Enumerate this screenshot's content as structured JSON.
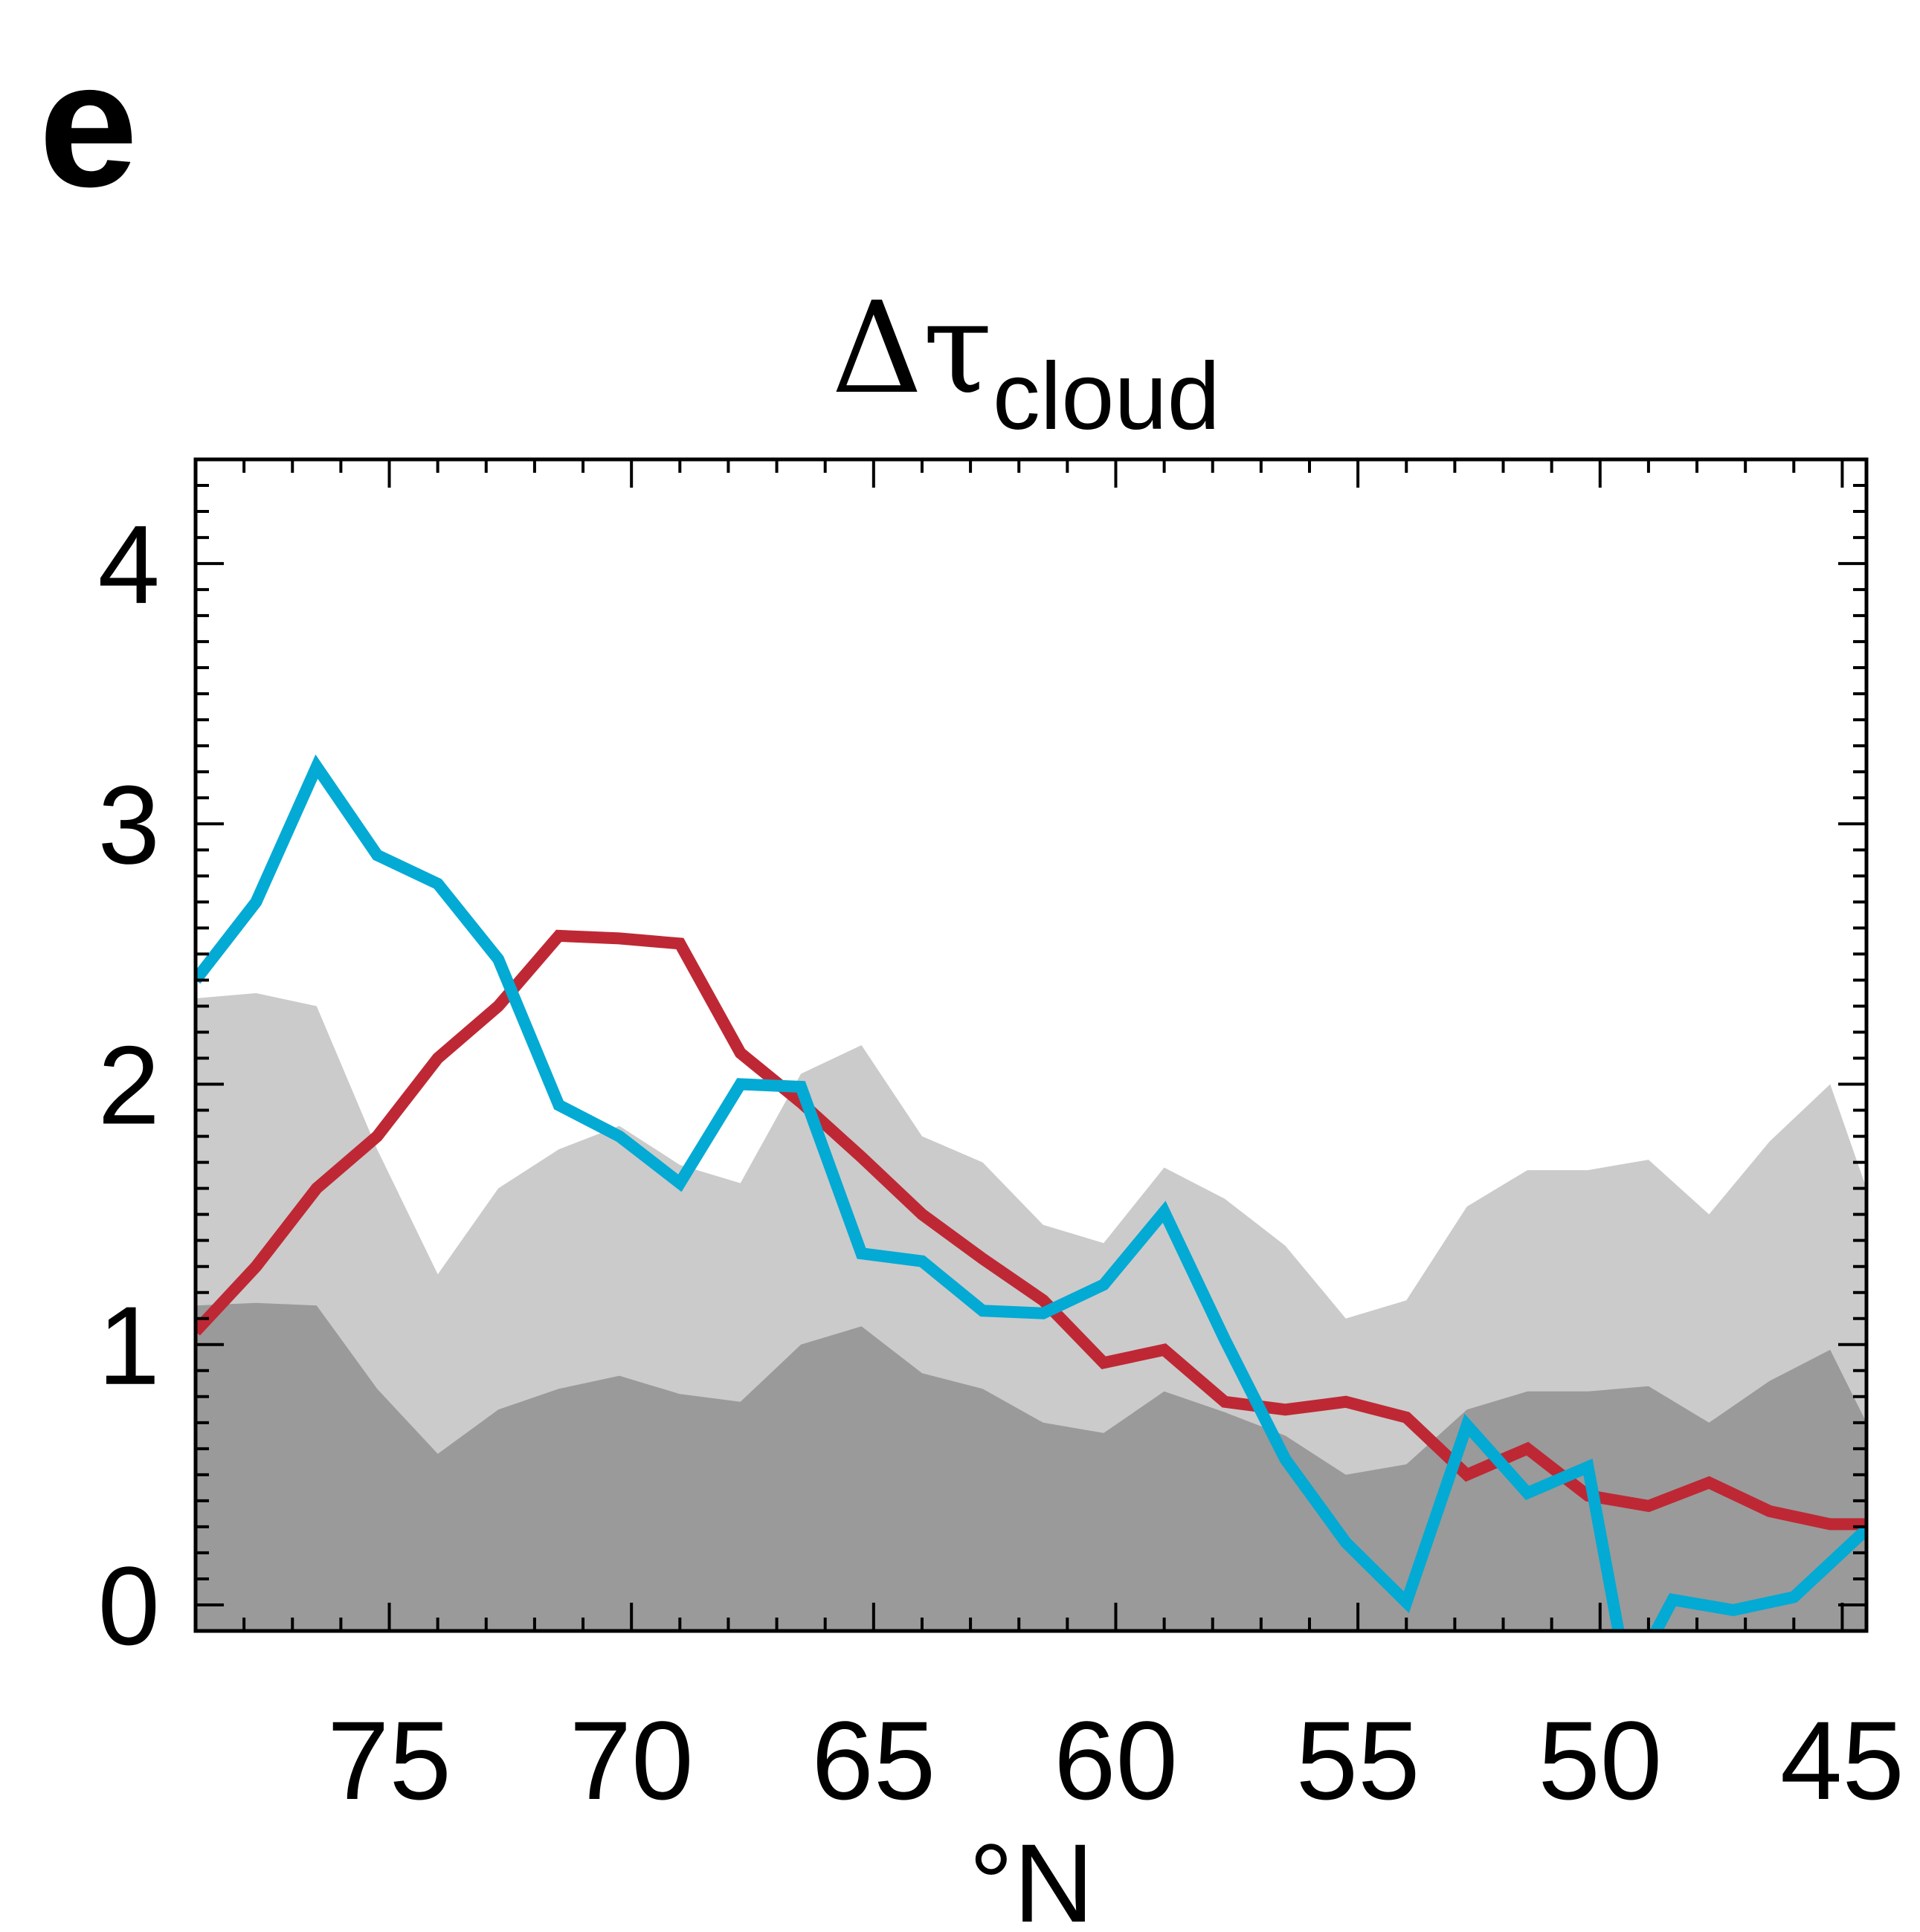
{
  "panel_label": "e",
  "chart_data": {
    "type": "line",
    "title": "Δτ",
    "title_subscript": "cloud",
    "xlabel": "°N",
    "ylabel": "",
    "xlim": [
      79,
      44.5
    ],
    "ylim": [
      -0.1,
      4.4
    ],
    "x_ticks": [
      75,
      70,
      65,
      60,
      55,
      50,
      45
    ],
    "y_ticks": [
      0,
      1,
      2,
      3,
      4
    ],
    "x_minor_step": 1,
    "y_minor_step": 0.1,
    "grid": false,
    "legend": "none",
    "x": [
      79,
      77.75,
      76.5,
      75.25,
      74,
      72.75,
      71.5,
      70.25,
      69,
      67.75,
      66.5,
      65.25,
      64,
      62.75,
      61.5,
      60.25,
      59,
      57.75,
      56.5,
      55.25,
      54,
      52.75,
      51.5,
      50.25,
      49,
      47.75,
      46.5,
      45.25,
      44.5
    ],
    "bands": [
      {
        "color": "#cbcbcb",
        "values": [
          2.33,
          2.35,
          2.3,
          1.75,
          1.27,
          1.6,
          1.75,
          1.84,
          1.69,
          1.62,
          2.04,
          2.15,
          1.8,
          1.7,
          1.46,
          1.39,
          1.68,
          1.56,
          1.38,
          1.1,
          1.17,
          1.53,
          1.67,
          1.67,
          1.71,
          1.5,
          1.78,
          2.0,
          1.6
        ]
      },
      {
        "color": "#9a9a9a",
        "values": [
          1.15,
          1.16,
          1.15,
          0.83,
          0.58,
          0.75,
          0.83,
          0.88,
          0.81,
          0.78,
          1.0,
          1.07,
          0.89,
          0.83,
          0.7,
          0.66,
          0.82,
          0.74,
          0.65,
          0.5,
          0.54,
          0.75,
          0.82,
          0.82,
          0.84,
          0.7,
          0.86,
          0.98,
          0.7
        ]
      }
    ],
    "series": [
      {
        "color": "#be2834",
        "values": [
          1.05,
          1.3,
          1.6,
          1.8,
          2.1,
          2.3,
          2.57,
          2.56,
          2.54,
          2.12,
          1.93,
          1.72,
          1.5,
          1.33,
          1.17,
          0.93,
          0.98,
          0.78,
          0.75,
          0.78,
          0.72,
          0.5,
          0.6,
          0.42,
          0.38,
          0.47,
          0.36,
          0.31,
          0.31
        ]
      },
      {
        "color": "#03aad4",
        "values": [
          2.4,
          2.7,
          3.22,
          2.88,
          2.77,
          2.48,
          1.92,
          1.8,
          1.62,
          2.0,
          1.99,
          1.35,
          1.32,
          1.13,
          1.12,
          1.23,
          1.51,
          1.02,
          0.56,
          0.24,
          0.01,
          0.69,
          0.43,
          0.53,
          -0.12,
          -0.12,
          0.02,
          -0.02,
          0.03,
          0.29
        ],
        "x": [
          79,
          77.75,
          76.5,
          75.25,
          74,
          72.75,
          71.5,
          70.25,
          69,
          67.75,
          66.5,
          65.25,
          64,
          62.75,
          61.5,
          60.25,
          59,
          57.75,
          56.5,
          55.25,
          54,
          52.75,
          51.5,
          50.25,
          49.6,
          48.9,
          48.5,
          47.25,
          46,
          44.5
        ]
      }
    ]
  }
}
